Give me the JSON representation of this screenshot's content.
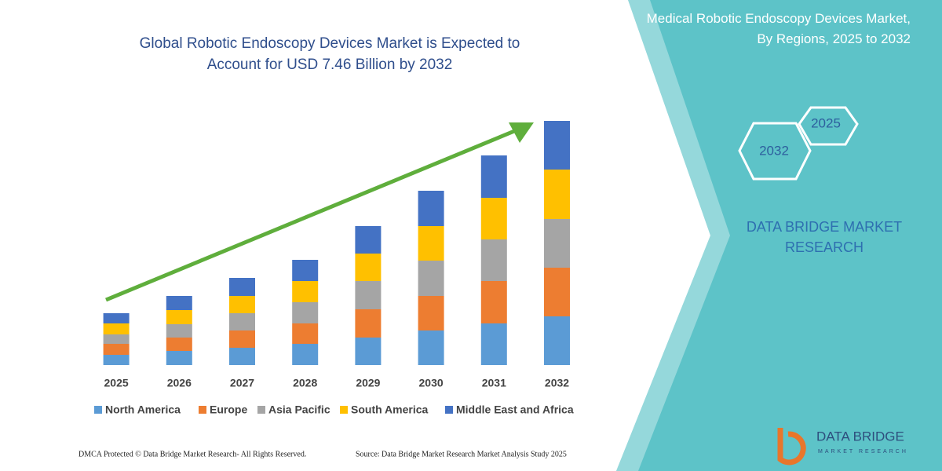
{
  "chart_data": {
    "type": "stacked-bar",
    "title": "Global Robotic Endoscopy Devices Market is Expected to Account for USD 7.46 Billion by 2032",
    "categories": [
      "2025",
      "2026",
      "2027",
      "2028",
      "2029",
      "2030",
      "2031",
      "2032"
    ],
    "series": [
      {
        "name": "North America",
        "color": "#5b9bd5",
        "values": [
          13,
          18,
          22,
          27,
          35,
          44,
          53,
          62
        ]
      },
      {
        "name": "Europe",
        "color": "#ed7d31",
        "values": [
          14,
          17,
          22,
          26,
          36,
          44,
          54,
          62
        ]
      },
      {
        "name": "Asia Pacific",
        "color": "#a5a5a5",
        "values": [
          12,
          17,
          22,
          27,
          36,
          45,
          53,
          62
        ]
      },
      {
        "name": "South America",
        "color": "#ffc000",
        "values": [
          14,
          18,
          22,
          27,
          35,
          44,
          53,
          63
        ]
      },
      {
        "name": "Middle East and Africa",
        "color": "#4472c4",
        "values": [
          13,
          18,
          23,
          27,
          35,
          45,
          54,
          62
        ]
      }
    ],
    "ylim": [
      0,
      311
    ],
    "legend": "bottom"
  },
  "panel_title": "Medical Robotic Endoscopy Devices Market, By Regions, 2025 to 2032",
  "hexagons": [
    "2025",
    "2032"
  ],
  "brand": "DATA BRIDGE MARKET RESEARCH",
  "logo_text": "DATA BRIDGE",
  "logo_subtext": "MARKET RESEARCH",
  "footer_left": "DMCA Protected © Data Bridge Market Research- All Rights Reserved.",
  "footer_right": "Source: Data Bridge Market Research Market Analysis Study 2025"
}
